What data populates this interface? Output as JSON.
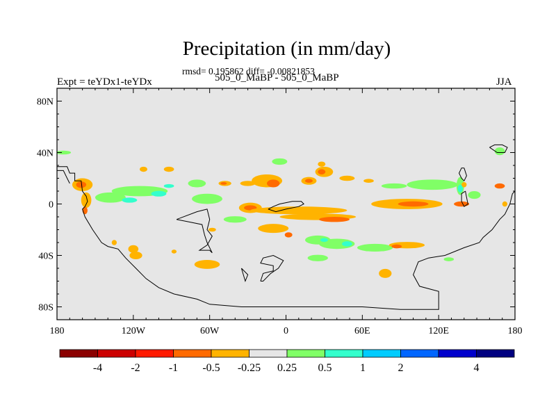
{
  "header": {
    "title": "Precipitation (in mm/day)",
    "stats": "rmsd= 0.195862 diff= -0.00821853",
    "left_label": "Expt = teYDx1-teYDx",
    "center_label": "505_0_MaBP - 505_0_MaBP",
    "right_label": "JJA"
  },
  "chart_data": {
    "type": "heatmap",
    "title": "Precipitation (in mm/day)",
    "subtitle": "505_0_MaBP - 505_0_MaBP",
    "xlabel": "",
    "ylabel": "",
    "xlim": [
      -180,
      180
    ],
    "ylim": [
      -90,
      90
    ],
    "x_ticks": [
      {
        "value": -180,
        "label": "180"
      },
      {
        "value": -120,
        "label": "120W"
      },
      {
        "value": -60,
        "label": "60W"
      },
      {
        "value": 0,
        "label": "0"
      },
      {
        "value": 60,
        "label": "60E"
      },
      {
        "value": 120,
        "label": "120E"
      },
      {
        "value": 180,
        "label": "180"
      }
    ],
    "y_ticks": [
      {
        "value": 80,
        "label": "80N"
      },
      {
        "value": 40,
        "label": "40N"
      },
      {
        "value": 0,
        "label": "0"
      },
      {
        "value": -40,
        "label": "40S"
      },
      {
        "value": -80,
        "label": "80S"
      }
    ],
    "background_color": "#e6e6e6",
    "colorbar": {
      "colors": [
        "#8b0000",
        "#cc0000",
        "#ff1a00",
        "#ff6a00",
        "#ffb300",
        "#e6e6e6",
        "#80ff66",
        "#33ffcc",
        "#00ccff",
        "#0066ff",
        "#0000cc",
        "#000080"
      ],
      "labels": [
        "-4",
        "-2",
        "-1",
        "-0.5",
        "-0.25",
        "0.25",
        "0.5",
        "1",
        "2",
        "4"
      ],
      "label_edges": [
        1,
        2,
        3,
        4,
        5,
        6,
        7,
        8,
        9,
        11
      ]
    },
    "anomaly_regions": [
      {
        "lon": -160,
        "lat": 15,
        "rlon": 8,
        "rlat": 5,
        "color": "#ffb300"
      },
      {
        "lon": -161,
        "lat": 15,
        "rlon": 4,
        "rlat": 2.5,
        "color": "#ff6a00"
      },
      {
        "lon": -157,
        "lat": 3,
        "rlon": 4,
        "rlat": 6,
        "color": "#ffb300"
      },
      {
        "lon": -158,
        "lat": -5,
        "rlon": 2,
        "rlat": 3,
        "color": "#ff6a00"
      },
      {
        "lon": -138,
        "lat": 5,
        "rlon": 12,
        "rlat": 4,
        "color": "#80ff66"
      },
      {
        "lon": -115,
        "lat": 10,
        "rlon": 22,
        "rlat": 4,
        "color": "#80ff66"
      },
      {
        "lon": -123,
        "lat": 3,
        "rlon": 6,
        "rlat": 2,
        "color": "#33ffcc"
      },
      {
        "lon": -100,
        "lat": 8,
        "rlon": 6,
        "rlat": 2.2,
        "color": "#33ffcc"
      },
      {
        "lon": -92,
        "lat": 14,
        "rlon": 4,
        "rlat": 1.5,
        "color": "#33ffcc"
      },
      {
        "lon": -112,
        "lat": 27,
        "rlon": 3,
        "rlat": 2,
        "color": "#ffb300"
      },
      {
        "lon": -92,
        "lat": 27,
        "rlon": 4,
        "rlat": 2,
        "color": "#ffb300"
      },
      {
        "lon": -70,
        "lat": 16,
        "rlon": 7,
        "rlat": 3,
        "color": "#80ff66"
      },
      {
        "lon": -48,
        "lat": 16,
        "rlon": 5,
        "rlat": 2,
        "color": "#ffb300"
      },
      {
        "lon": -49,
        "lat": 16,
        "rlon": 2.5,
        "rlat": 1,
        "color": "#ff6a00"
      },
      {
        "lon": -30,
        "lat": 16,
        "rlon": 6,
        "rlat": 2,
        "color": "#ffb300"
      },
      {
        "lon": -62,
        "lat": 4,
        "rlon": 12,
        "rlat": 4,
        "color": "#80ff66"
      },
      {
        "lon": -40,
        "lat": -12,
        "rlon": 9,
        "rlat": 2.5,
        "color": "#80ff66"
      },
      {
        "lon": -5,
        "lat": 33,
        "rlon": 6,
        "rlat": 2.5,
        "color": "#80ff66"
      },
      {
        "lon": -120,
        "lat": -35,
        "rlon": 4,
        "rlat": 3,
        "color": "#ffb300"
      },
      {
        "lon": -118,
        "lat": -40,
        "rlon": 5,
        "rlat": 3,
        "color": "#ffb300"
      },
      {
        "lon": -135,
        "lat": -30,
        "rlon": 2,
        "rlat": 2,
        "color": "#ffb300"
      },
      {
        "lon": -15,
        "lat": 18,
        "rlon": 12,
        "rlat": 5,
        "color": "#ffb300"
      },
      {
        "lon": -10,
        "lat": 16,
        "rlon": 5,
        "rlat": 3,
        "color": "#ff6a00"
      },
      {
        "lon": -28,
        "lat": -3,
        "rlon": 9,
        "rlat": 4,
        "color": "#ffb300"
      },
      {
        "lon": -28,
        "lat": -3,
        "rlon": 5,
        "rlat": 2,
        "color": "#ff6a00"
      },
      {
        "lon": 10,
        "lat": -5,
        "rlon": 38,
        "rlat": 3,
        "color": "#ffb300"
      },
      {
        "lon": 25,
        "lat": -10,
        "rlon": 30,
        "rlat": 2.5,
        "color": "#ffb300"
      },
      {
        "lon": 38,
        "lat": -12,
        "rlon": 12,
        "rlat": 2,
        "color": "#ff6a00"
      },
      {
        "lon": -10,
        "lat": -19,
        "rlon": 12,
        "rlat": 3.5,
        "color": "#ffb300"
      },
      {
        "lon": 2,
        "lat": -24,
        "rlon": 3,
        "rlat": 2,
        "color": "#ff6a00"
      },
      {
        "lon": 30,
        "lat": 25,
        "rlon": 7,
        "rlat": 4,
        "color": "#ffb300"
      },
      {
        "lon": 28,
        "lat": 25,
        "rlon": 3,
        "rlat": 2,
        "color": "#ff6a00"
      },
      {
        "lon": 18,
        "lat": 18,
        "rlon": 6,
        "rlat": 3,
        "color": "#ffb300"
      },
      {
        "lon": 18,
        "lat": 18,
        "rlon": 3,
        "rlat": 1.5,
        "color": "#ff6a00"
      },
      {
        "lon": 28,
        "lat": 31,
        "rlon": 3,
        "rlat": 2,
        "color": "#ffb300"
      },
      {
        "lon": 48,
        "lat": 20,
        "rlon": 6,
        "rlat": 2,
        "color": "#ffb300"
      },
      {
        "lon": 65,
        "lat": 18,
        "rlon": 4,
        "rlat": 1.5,
        "color": "#ffb300"
      },
      {
        "lon": 115,
        "lat": 15,
        "rlon": 20,
        "rlat": 4,
        "color": "#80ff66"
      },
      {
        "lon": 85,
        "lat": 14,
        "rlon": 10,
        "rlat": 2,
        "color": "#80ff66"
      },
      {
        "lon": 95,
        "lat": 0,
        "rlon": 28,
        "rlat": 4,
        "color": "#ffb300"
      },
      {
        "lon": 100,
        "lat": 0,
        "rlon": 12,
        "rlat": 2,
        "color": "#ff6a00"
      },
      {
        "lon": 138,
        "lat": 0,
        "rlon": 6,
        "rlat": 2,
        "color": "#ff6a00"
      },
      {
        "lon": 148,
        "lat": 7,
        "rlon": 5,
        "rlat": 3,
        "color": "#80ff66"
      },
      {
        "lon": 137,
        "lat": 14,
        "rlon": 3,
        "rlat": 7,
        "color": "#80ff66"
      },
      {
        "lon": 137,
        "lat": 12,
        "rlon": 2,
        "rlat": 3,
        "color": "#33ffcc"
      },
      {
        "lon": 140,
        "lat": 15,
        "rlon": 2,
        "rlat": 2,
        "color": "#ffb300"
      },
      {
        "lon": 168,
        "lat": 14,
        "rlon": 4,
        "rlat": 2,
        "color": "#ff6a00"
      },
      {
        "lon": 172,
        "lat": 0,
        "rlon": 2,
        "rlat": 2,
        "color": "#ffb300"
      },
      {
        "lon": 168,
        "lat": 41,
        "rlon": 4,
        "rlat": 3,
        "color": "#80ff66"
      },
      {
        "lon": -175,
        "lat": 40,
        "rlon": 6,
        "rlat": 1.5,
        "color": "#80ff66"
      },
      {
        "lon": 25,
        "lat": -28,
        "rlon": 10,
        "rlat": 3.5,
        "color": "#80ff66"
      },
      {
        "lon": 40,
        "lat": -31,
        "rlon": 14,
        "rlat": 4,
        "color": "#80ff66"
      },
      {
        "lon": 30,
        "lat": -28,
        "rlon": 3,
        "rlat": 1.5,
        "color": "#33ffcc"
      },
      {
        "lon": 48,
        "lat": -31,
        "rlon": 4,
        "rlat": 2,
        "color": "#33ffcc"
      },
      {
        "lon": 70,
        "lat": -34,
        "rlon": 14,
        "rlat": 3,
        "color": "#80ff66"
      },
      {
        "lon": 95,
        "lat": -32,
        "rlon": 14,
        "rlat": 2.5,
        "color": "#ffb300"
      },
      {
        "lon": 87,
        "lat": -33,
        "rlon": 4,
        "rlat": 1.5,
        "color": "#ff6a00"
      },
      {
        "lon": 25,
        "lat": -42,
        "rlon": 8,
        "rlat": 2.5,
        "color": "#80ff66"
      },
      {
        "lon": 78,
        "lat": -54,
        "rlon": 5,
        "rlat": 3.5,
        "color": "#ffb300"
      },
      {
        "lon": 128,
        "lat": -43,
        "rlon": 4,
        "rlat": 1.5,
        "color": "#80ff66"
      },
      {
        "lon": -62,
        "lat": -47,
        "rlon": 10,
        "rlat": 3.5,
        "color": "#ffb300"
      },
      {
        "lon": -58,
        "lat": -20,
        "rlon": 3,
        "rlat": 1.5,
        "color": "#ffb300"
      },
      {
        "lon": -88,
        "lat": -37,
        "rlon": 2,
        "rlat": 1.5,
        "color": "#ffb300"
      }
    ],
    "coastlines": [
      [
        [
          -180,
          29
        ],
        [
          -172,
          29
        ],
        [
          -170,
          24
        ],
        [
          -166,
          24
        ],
        [
          -166,
          18
        ],
        [
          -161,
          18
        ],
        [
          -160,
          10
        ],
        [
          -157,
          6
        ],
        [
          -156,
          2
        ],
        [
          -158,
          -2
        ],
        [
          -160,
          -4
        ],
        [
          -158,
          -10
        ],
        [
          -152,
          -20
        ],
        [
          -145,
          -30
        ],
        [
          -140,
          -33
        ],
        [
          -132,
          -35
        ],
        [
          -126,
          -42
        ],
        [
          -118,
          -50
        ],
        [
          -110,
          -58
        ],
        [
          -100,
          -65
        ],
        [
          -88,
          -70
        ],
        [
          -70,
          -74
        ],
        [
          -60,
          -78
        ],
        [
          -35,
          -80
        ],
        [
          0,
          -80
        ],
        [
          30,
          -80
        ],
        [
          60,
          -80
        ],
        [
          90,
          -82
        ],
        [
          120,
          -82
        ],
        [
          120,
          -68
        ],
        [
          105,
          -64
        ],
        [
          100,
          -55
        ],
        [
          104,
          -45
        ],
        [
          112,
          -42
        ],
        [
          125,
          -40
        ],
        [
          135,
          -36
        ],
        [
          140,
          -34
        ],
        [
          152,
          -30
        ],
        [
          155,
          -26
        ],
        [
          162,
          -20
        ],
        [
          168,
          -12
        ],
        [
          172,
          -8
        ],
        [
          176,
          0
        ],
        [
          178,
          8
        ],
        [
          180,
          10
        ]
      ],
      [
        [
          -180,
          26
        ],
        [
          -175,
          26
        ],
        [
          -172,
          20
        ],
        [
          -170,
          16
        ]
      ],
      [
        [
          -86,
          -12
        ],
        [
          -70,
          -6
        ],
        [
          -62,
          -4
        ],
        [
          -60,
          -12
        ],
        [
          -62,
          -20
        ],
        [
          -58,
          -25
        ],
        [
          -62,
          -32
        ],
        [
          -68,
          -36
        ],
        [
          -60,
          -36
        ],
        [
          -58,
          -38
        ],
        [
          -62,
          -30
        ],
        [
          -64,
          -24
        ],
        [
          -66,
          -16
        ],
        [
          -76,
          -14
        ],
        [
          -86,
          -12
        ]
      ],
      [
        [
          -14,
          -4
        ],
        [
          -10,
          -2
        ],
        [
          -5,
          0
        ],
        [
          5,
          2
        ],
        [
          12,
          2
        ],
        [
          14,
          0
        ],
        [
          10,
          -2
        ],
        [
          0,
          -4
        ],
        [
          -8,
          -6
        ],
        [
          -14,
          -4
        ]
      ],
      [
        [
          -20,
          -60
        ],
        [
          -18,
          -54
        ],
        [
          -10,
          -52
        ],
        [
          -10,
          -48
        ],
        [
          -20,
          -46
        ],
        [
          -18,
          -42
        ],
        [
          -10,
          -40
        ],
        [
          -2,
          -44
        ],
        [
          -6,
          -50
        ],
        [
          -12,
          -54
        ],
        [
          -18,
          -60
        ],
        [
          -20,
          -60
        ]
      ],
      [
        [
          -35,
          -50
        ],
        [
          -30,
          -55
        ],
        [
          -32,
          -60
        ],
        [
          -35,
          -50
        ]
      ],
      [
        [
          140,
          28
        ],
        [
          142,
          22
        ],
        [
          140,
          18
        ],
        [
          138,
          20
        ],
        [
          136,
          24
        ],
        [
          138,
          28
        ],
        [
          140,
          28
        ]
      ],
      [
        [
          141,
          10
        ],
        [
          142,
          5
        ],
        [
          143,
          0
        ],
        [
          140,
          -2
        ],
        [
          138,
          2
        ],
        [
          138,
          8
        ],
        [
          141,
          10
        ]
      ],
      [
        [
          160,
          44
        ],
        [
          164,
          46
        ],
        [
          170,
          46
        ],
        [
          174,
          44
        ],
        [
          172,
          40
        ],
        [
          166,
          40
        ],
        [
          160,
          44
        ]
      ]
    ]
  }
}
